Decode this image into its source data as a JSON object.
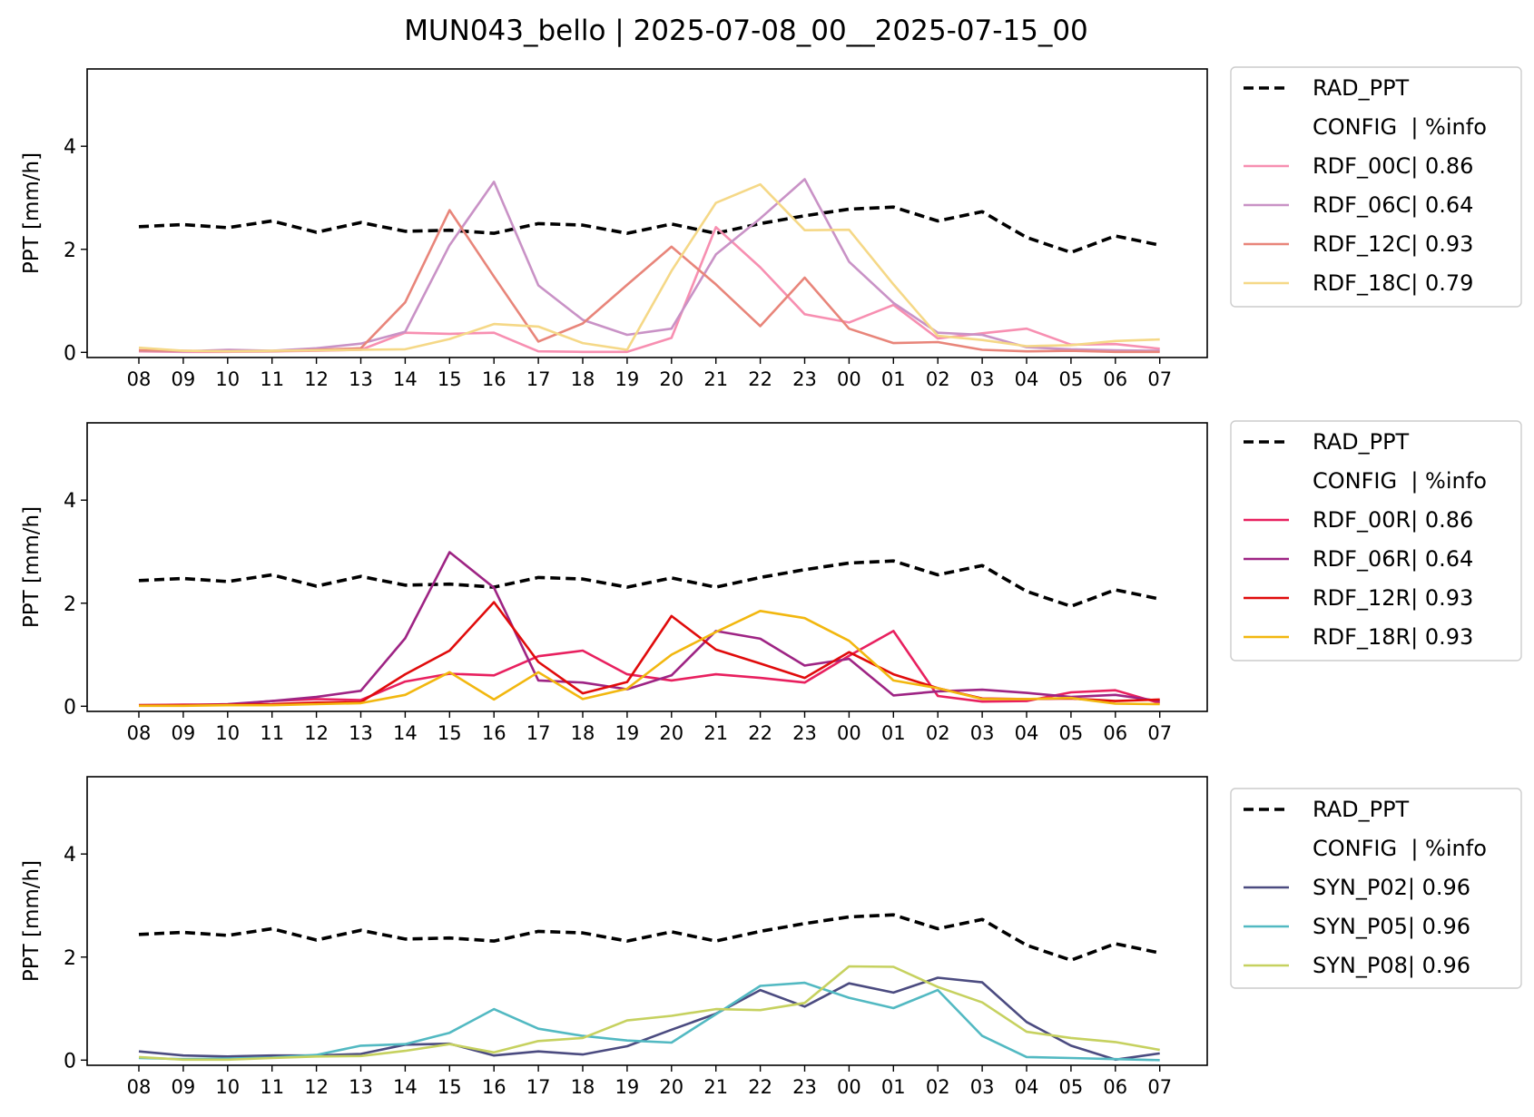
{
  "figure": {
    "title": "MUN043_bello | 2025-07-08_00__2025-07-15_00"
  },
  "chart_data": [
    {
      "type": "line",
      "ylabel": "PPT [mm/h]",
      "ylim": [
        -0.1,
        5.5
      ],
      "yticks": [
        0,
        2,
        4
      ],
      "grid": false,
      "legend_placement": "outside-right",
      "legend_header": "CONFIG  | %info",
      "categories": [
        "08",
        "09",
        "10",
        "11",
        "12",
        "13",
        "14",
        "15",
        "16",
        "17",
        "18",
        "19",
        "20",
        "21",
        "22",
        "23",
        "00",
        "01",
        "02",
        "03",
        "04",
        "05",
        "06",
        "07"
      ],
      "series": [
        {
          "name": "RAD_PPT",
          "color": "#000000",
          "dashed": true,
          "values": [
            2.44,
            2.48,
            2.42,
            2.55,
            2.33,
            2.52,
            2.35,
            2.37,
            2.31,
            2.5,
            2.47,
            2.31,
            2.49,
            2.31,
            2.5,
            2.65,
            2.78,
            2.82,
            2.55,
            2.73,
            2.23,
            1.94,
            2.26,
            2.08
          ]
        },
        {
          "name": "RDF_00C| 0.86",
          "color": "#f78fb1",
          "values": [
            0.02,
            0.01,
            0.01,
            0.02,
            0.03,
            0.05,
            0.38,
            0.36,
            0.38,
            0.02,
            0.01,
            0.01,
            0.28,
            2.43,
            1.65,
            0.74,
            0.58,
            0.92,
            0.27,
            0.37,
            0.46,
            0.15,
            0.16,
            0.07
          ]
        },
        {
          "name": "RDF_06C| 0.64",
          "color": "#c992c6",
          "values": [
            0.03,
            0.02,
            0.05,
            0.03,
            0.08,
            0.17,
            0.4,
            2.08,
            3.31,
            1.3,
            0.63,
            0.34,
            0.46,
            1.9,
            2.6,
            3.36,
            1.76,
            0.96,
            0.38,
            0.34,
            0.1,
            0.06,
            0.04,
            0.03
          ]
        },
        {
          "name": "RDF_12C| 0.93",
          "color": "#e8857a",
          "values": [
            0.04,
            0.03,
            0.02,
            0.02,
            0.05,
            0.08,
            0.97,
            2.76,
            1.47,
            0.21,
            0.56,
            1.31,
            2.05,
            1.32,
            0.51,
            1.45,
            0.46,
            0.18,
            0.2,
            0.05,
            0.02,
            0.03,
            0.01,
            0.01
          ]
        },
        {
          "name": "RDF_18C| 0.79",
          "color": "#f5d887",
          "values": [
            0.09,
            0.03,
            0.02,
            0.03,
            0.04,
            0.05,
            0.06,
            0.26,
            0.55,
            0.5,
            0.18,
            0.05,
            1.58,
            2.9,
            3.26,
            2.37,
            2.38,
            1.32,
            0.32,
            0.24,
            0.12,
            0.14,
            0.22,
            0.25
          ]
        }
      ]
    },
    {
      "type": "line",
      "ylabel": "PPT [mm/h]",
      "ylim": [
        -0.1,
        5.5
      ],
      "yticks": [
        0,
        2,
        4
      ],
      "grid": false,
      "legend_placement": "outside-right",
      "legend_header": "CONFIG  | %info",
      "categories": [
        "08",
        "09",
        "10",
        "11",
        "12",
        "13",
        "14",
        "15",
        "16",
        "17",
        "18",
        "19",
        "20",
        "21",
        "22",
        "23",
        "00",
        "01",
        "02",
        "03",
        "04",
        "05",
        "06",
        "07"
      ],
      "series": [
        {
          "name": "RAD_PPT",
          "color": "#000000",
          "dashed": true,
          "values": [
            2.44,
            2.48,
            2.42,
            2.55,
            2.33,
            2.52,
            2.35,
            2.37,
            2.31,
            2.5,
            2.47,
            2.31,
            2.49,
            2.31,
            2.5,
            2.65,
            2.78,
            2.82,
            2.55,
            2.73,
            2.23,
            1.94,
            2.26,
            2.08
          ]
        },
        {
          "name": "RDF_00R| 0.86",
          "color": "#e8205f",
          "values": [
            0.02,
            0.03,
            0.03,
            0.1,
            0.14,
            0.12,
            0.48,
            0.63,
            0.6,
            0.97,
            1.08,
            0.62,
            0.5,
            0.62,
            0.55,
            0.46,
            0.98,
            1.46,
            0.2,
            0.09,
            0.1,
            0.27,
            0.31,
            0.06
          ]
        },
        {
          "name": "RDF_06R| 0.64",
          "color": "#9e2484",
          "values": [
            0.02,
            0.02,
            0.04,
            0.1,
            0.18,
            0.3,
            1.32,
            2.99,
            2.3,
            0.5,
            0.46,
            0.33,
            0.6,
            1.46,
            1.31,
            0.79,
            0.92,
            0.21,
            0.29,
            0.32,
            0.26,
            0.18,
            0.22,
            0.1
          ]
        },
        {
          "name": "RDF_12R| 0.93",
          "color": "#e00b0b",
          "values": [
            0.02,
            0.02,
            0.03,
            0.04,
            0.07,
            0.08,
            0.62,
            1.08,
            2.02,
            0.86,
            0.25,
            0.47,
            1.75,
            1.1,
            0.83,
            0.55,
            1.05,
            0.62,
            0.35,
            0.15,
            0.14,
            0.15,
            0.1,
            0.13
          ]
        },
        {
          "name": "RDF_18R| 0.93",
          "color": "#f2b70f",
          "values": [
            0.01,
            0.01,
            0.02,
            0.02,
            0.04,
            0.06,
            0.22,
            0.66,
            0.13,
            0.66,
            0.14,
            0.34,
            1.0,
            1.44,
            1.85,
            1.71,
            1.27,
            0.5,
            0.35,
            0.14,
            0.14,
            0.16,
            0.05,
            0.04
          ]
        }
      ]
    },
    {
      "type": "line",
      "ylabel": "PPT [mm/h]",
      "ylim": [
        -0.1,
        5.5
      ],
      "yticks": [
        0,
        2,
        4
      ],
      "grid": false,
      "legend_placement": "outside-right",
      "legend_header": "CONFIG  | %info",
      "categories": [
        "08",
        "09",
        "10",
        "11",
        "12",
        "13",
        "14",
        "15",
        "16",
        "17",
        "18",
        "19",
        "20",
        "21",
        "22",
        "23",
        "00",
        "01",
        "02",
        "03",
        "04",
        "05",
        "06",
        "07"
      ],
      "series": [
        {
          "name": "RAD_PPT",
          "color": "#000000",
          "dashed": true,
          "values": [
            2.44,
            2.48,
            2.42,
            2.55,
            2.33,
            2.52,
            2.35,
            2.37,
            2.31,
            2.5,
            2.47,
            2.31,
            2.49,
            2.31,
            2.5,
            2.65,
            2.78,
            2.82,
            2.55,
            2.73,
            2.23,
            1.94,
            2.26,
            2.08
          ]
        },
        {
          "name": "SYN_P02| 0.96",
          "color": "#4b4b80",
          "values": [
            0.17,
            0.09,
            0.07,
            0.09,
            0.09,
            0.12,
            0.3,
            0.32,
            0.09,
            0.17,
            0.11,
            0.27,
            0.59,
            0.9,
            1.36,
            1.04,
            1.49,
            1.31,
            1.6,
            1.51,
            0.74,
            0.28,
            0.01,
            0.13
          ]
        },
        {
          "name": "SYN_P05| 0.96",
          "color": "#52b9c2",
          "values": [
            0.04,
            0.02,
            0.03,
            0.05,
            0.1,
            0.28,
            0.31,
            0.53,
            0.99,
            0.61,
            0.47,
            0.38,
            0.34,
            0.89,
            1.44,
            1.5,
            1.21,
            1.01,
            1.36,
            0.47,
            0.06,
            0.04,
            0.02,
            0.0
          ]
        },
        {
          "name": "SYN_P08| 0.96",
          "color": "#c6d15f",
          "values": [
            0.06,
            0.01,
            0.01,
            0.04,
            0.07,
            0.08,
            0.18,
            0.31,
            0.15,
            0.37,
            0.43,
            0.77,
            0.86,
            0.99,
            0.97,
            1.11,
            1.82,
            1.81,
            1.42,
            1.12,
            0.55,
            0.43,
            0.35,
            0.2
          ]
        }
      ]
    }
  ]
}
